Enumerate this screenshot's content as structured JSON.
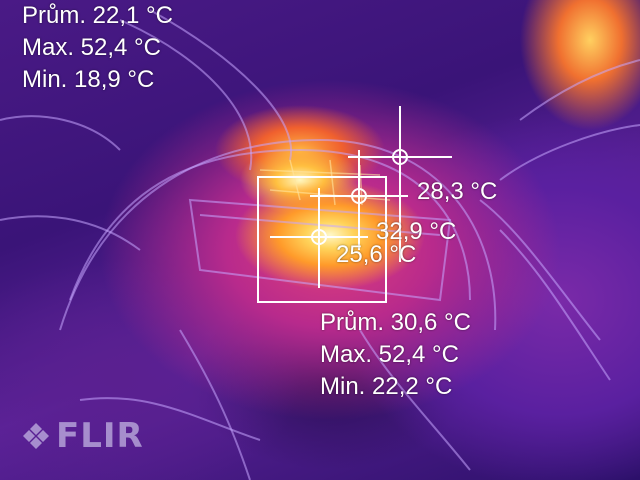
{
  "overall": {
    "avg": "Prům. 22,1 °C",
    "max": "Max. 52,4 °C",
    "min": "Min. 18,9 °C"
  },
  "measurement_box": {
    "avg": "Prům. 30,6 °C",
    "max": "Max. 52,4 °C",
    "min": "Min. 22,2 °C"
  },
  "spots": [
    {
      "label": "28,3 °C"
    },
    {
      "label": "32,9 °C"
    },
    {
      "label": "25,6 °C"
    }
  ],
  "logo": {
    "text": "FLIR"
  },
  "colors": {
    "text": "#ffffff",
    "reticle": "#ffffff",
    "palette": "iron"
  }
}
